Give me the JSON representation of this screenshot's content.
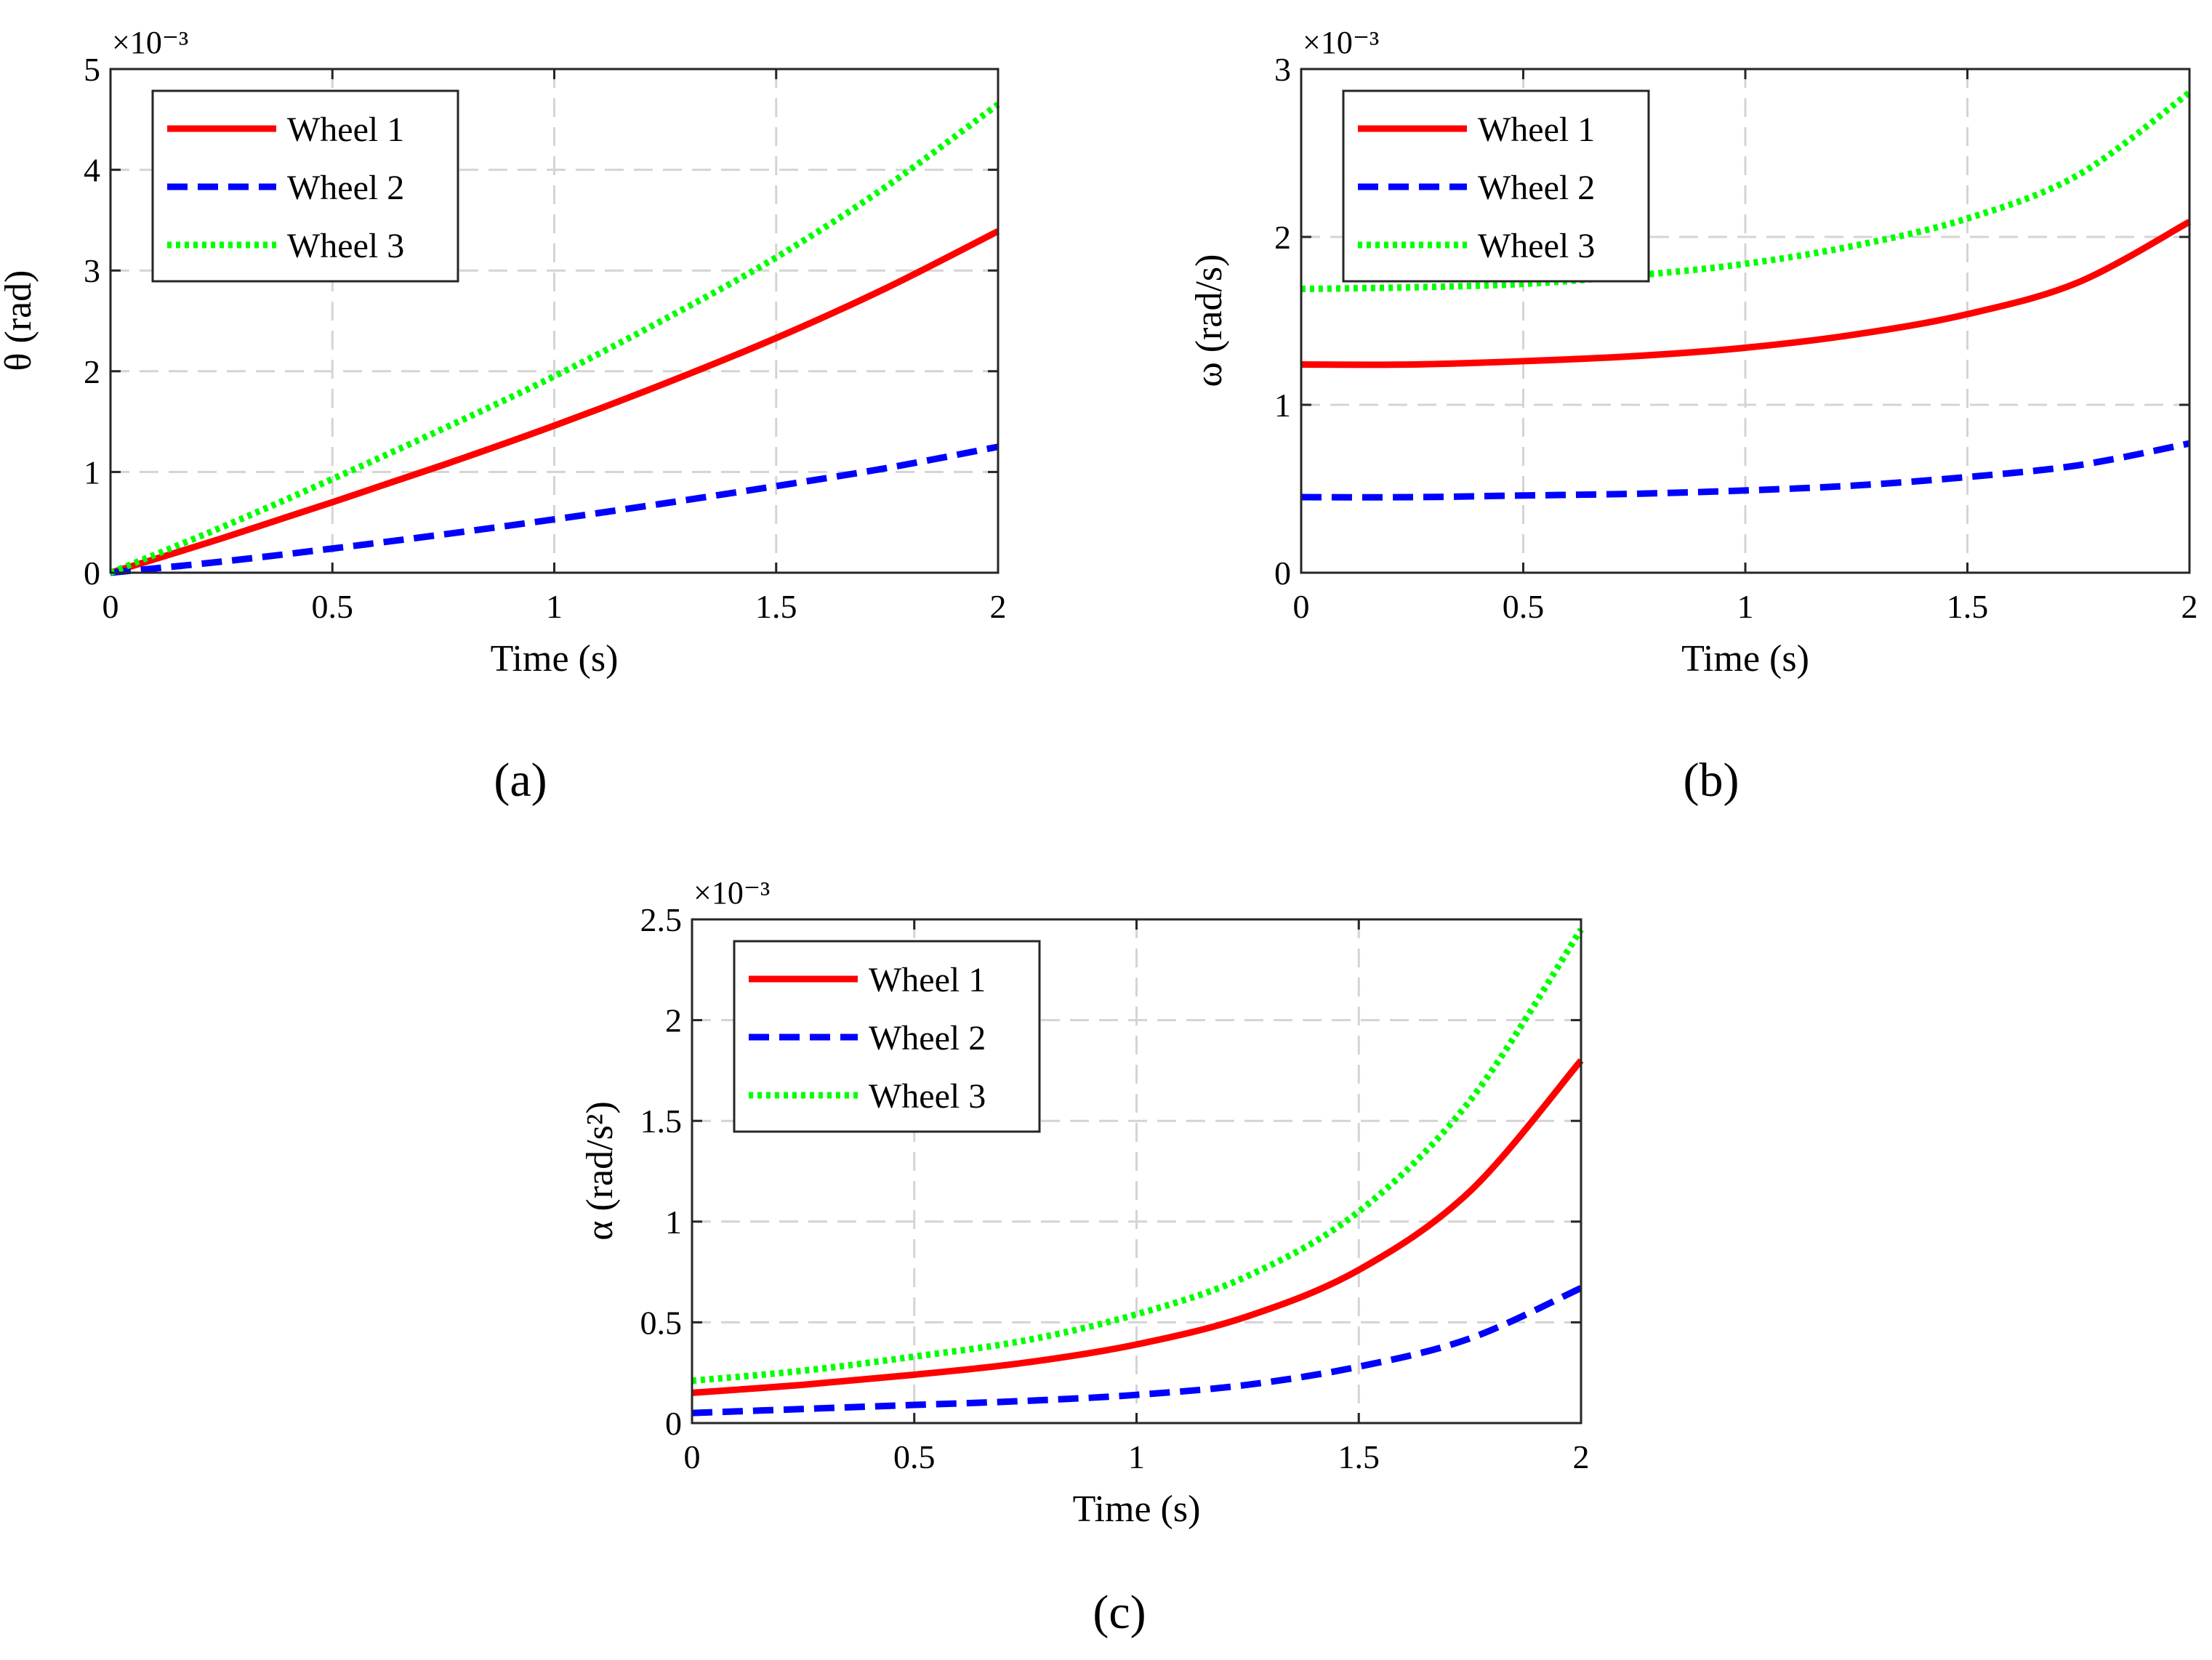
{
  "colors": {
    "wheel1": "#ff0000",
    "wheel2": "#0000ff",
    "wheel3": "#00ff00"
  },
  "chart_data": [
    {
      "id": "a",
      "type": "line",
      "caption": "(a)",
      "xlabel": "Time (s)",
      "ylabel": "θ (rad)",
      "exponent_label": "×10⁻³",
      "xlim": [
        0,
        2
      ],
      "ylim": [
        0,
        5
      ],
      "xticks": [
        0,
        0.5,
        1,
        1.5,
        2
      ],
      "xticklabels": [
        "0",
        "0.5",
        "1",
        "1.5",
        "2"
      ],
      "yticks": [
        0,
        1,
        2,
        3,
        4,
        5
      ],
      "yticklabels": [
        "0",
        "1",
        "2",
        "3",
        "4",
        "5"
      ],
      "grid": true,
      "legend_position": "top-left",
      "x": [
        0,
        0.25,
        0.5,
        0.75,
        1,
        1.25,
        1.5,
        1.75,
        2
      ],
      "series": [
        {
          "name": "Wheel 1",
          "style": "solid",
          "values": [
            0,
            0.34,
            0.7,
            1.07,
            1.46,
            1.88,
            2.33,
            2.83,
            3.39
          ]
        },
        {
          "name": "Wheel 2",
          "style": "dashed",
          "values": [
            0,
            0.11,
            0.24,
            0.38,
            0.53,
            0.69,
            0.86,
            1.04,
            1.25
          ]
        },
        {
          "name": "Wheel 3",
          "style": "dotted",
          "values": [
            0,
            0.45,
            0.93,
            1.43,
            1.95,
            2.52,
            3.13,
            3.84,
            4.65
          ]
        }
      ]
    },
    {
      "id": "b",
      "type": "line",
      "caption": "(b)",
      "xlabel": "Time (s)",
      "ylabel": "ω (rad/s)",
      "exponent_label": "×10⁻³",
      "xlim": [
        0,
        2
      ],
      "ylim": [
        0,
        3
      ],
      "xticks": [
        0,
        0.5,
        1,
        1.5,
        2
      ],
      "xticklabels": [
        "0",
        "0.5",
        "1",
        "1.5",
        "2"
      ],
      "yticks": [
        0,
        1,
        2,
        3
      ],
      "yticklabels": [
        "0",
        "1",
        "2",
        "3"
      ],
      "grid": true,
      "legend_position": "top-left",
      "x": [
        0,
        0.25,
        0.5,
        0.75,
        1,
        1.25,
        1.5,
        1.75,
        2
      ],
      "series": [
        {
          "name": "Wheel 1",
          "style": "solid",
          "values": [
            1.24,
            1.24,
            1.26,
            1.29,
            1.34,
            1.42,
            1.54,
            1.73,
            2.09
          ]
        },
        {
          "name": "Wheel 2",
          "style": "dashed",
          "values": [
            0.45,
            0.45,
            0.46,
            0.47,
            0.49,
            0.52,
            0.57,
            0.64,
            0.77
          ]
        },
        {
          "name": "Wheel 3",
          "style": "dotted",
          "values": [
            1.69,
            1.7,
            1.72,
            1.77,
            1.84,
            1.95,
            2.11,
            2.37,
            2.86
          ]
        }
      ]
    },
    {
      "id": "c",
      "type": "line",
      "caption": "(c)",
      "xlabel": "Time (s)",
      "ylabel": "α (rad/s²)",
      "exponent_label": "×10⁻³",
      "xlim": [
        0,
        2
      ],
      "ylim": [
        0,
        2.5
      ],
      "xticks": [
        0,
        0.5,
        1,
        1.5,
        2
      ],
      "xticklabels": [
        "0",
        "0.5",
        "1",
        "1.5",
        "2"
      ],
      "yticks": [
        0,
        0.5,
        1,
        1.5,
        2,
        2.5
      ],
      "yticklabels": [
        "0",
        "0.5",
        "1",
        "1.5",
        "2",
        "2.5"
      ],
      "grid": true,
      "legend_position": "top-left",
      "x": [
        0,
        0.25,
        0.5,
        0.75,
        1,
        1.25,
        1.5,
        1.75,
        2
      ],
      "series": [
        {
          "name": "Wheel 1",
          "style": "solid",
          "values": [
            0.15,
            0.19,
            0.24,
            0.3,
            0.39,
            0.53,
            0.76,
            1.15,
            1.8
          ]
        },
        {
          "name": "Wheel 2",
          "style": "dashed",
          "values": [
            0.05,
            0.07,
            0.09,
            0.11,
            0.14,
            0.19,
            0.28,
            0.42,
            0.67
          ]
        },
        {
          "name": "Wheel 3",
          "style": "dotted",
          "values": [
            0.21,
            0.26,
            0.33,
            0.41,
            0.54,
            0.73,
            1.05,
            1.6,
            2.45
          ]
        }
      ]
    }
  ]
}
